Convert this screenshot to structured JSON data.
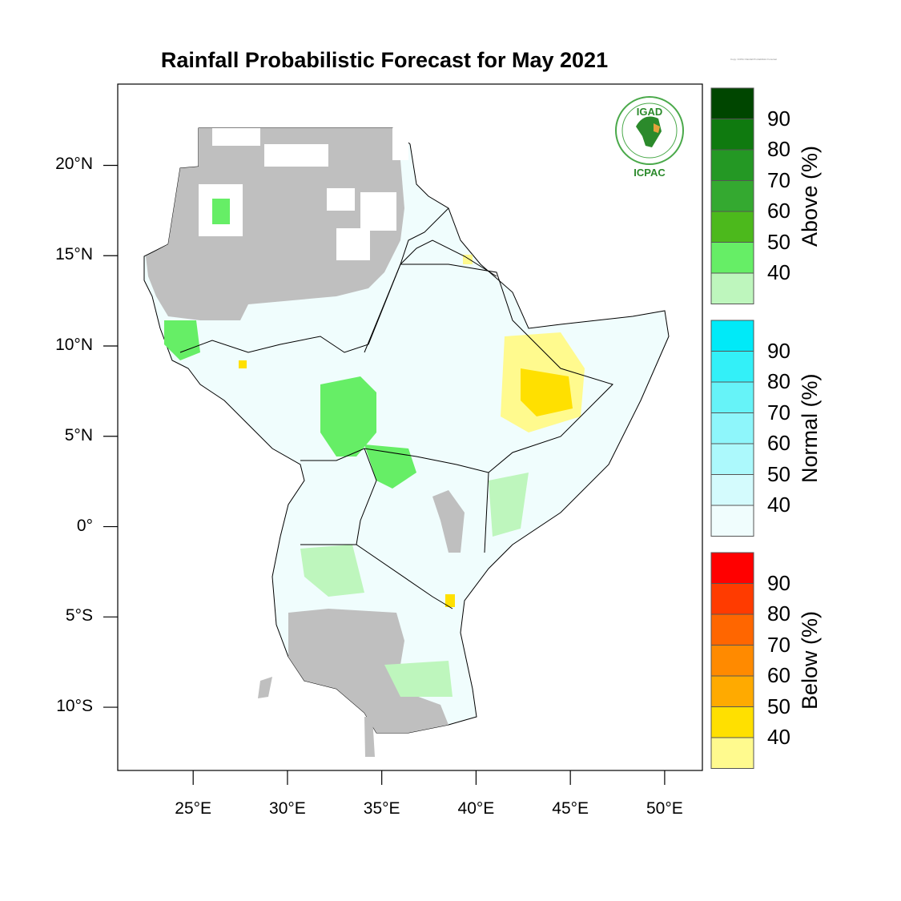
{
  "title": "Rainfall Probabilistic Forecast for May 2021",
  "tiny_note": "Copy: ICPAC Rainfall Probabilistic Forecast",
  "map": {
    "projection": "lat-lon",
    "lon_range": [
      21,
      52
    ],
    "lat_range": [
      -13.5,
      24.5
    ],
    "lat_ticks": [
      {
        "value": 20,
        "label": "20°N"
      },
      {
        "value": 15,
        "label": "15°N"
      },
      {
        "value": 10,
        "label": "10°N"
      },
      {
        "value": 5,
        "label": "5°N"
      },
      {
        "value": 0,
        "label": "0°"
      },
      {
        "value": -5,
        "label": "5°S"
      },
      {
        "value": -10,
        "label": "10°S"
      }
    ],
    "lon_ticks": [
      {
        "value": 25,
        "label": "25°E"
      },
      {
        "value": 30,
        "label": "30°E"
      },
      {
        "value": 35,
        "label": "35°E"
      },
      {
        "value": 40,
        "label": "40°E"
      },
      {
        "value": 45,
        "label": "45°E"
      },
      {
        "value": 50,
        "label": "50°E"
      }
    ],
    "colors": {
      "no_forecast": "#bfbfbf",
      "normal_40": "#f0fdfd",
      "above_40": "#bef6bd",
      "above_50": "#66ee66",
      "below_40": "#fffa8e",
      "below_50": "#ffe000",
      "normal_50": "#c8f8ff",
      "border": "#000000"
    }
  },
  "logo": {
    "org_top": "IGAD",
    "org_bottom": "ICPAC"
  },
  "legends": [
    {
      "name": "above",
      "title": "Above (%)",
      "labels": [
        "90",
        "80",
        "70",
        "60",
        "50",
        "40"
      ],
      "colors": [
        "#004600",
        "#0f7a0f",
        "#249824",
        "#34a930",
        "#4cb91c",
        "#66ee66",
        "#bef6bd"
      ]
    },
    {
      "name": "normal",
      "title": "Normal (%)",
      "labels": [
        "90",
        "80",
        "70",
        "60",
        "50",
        "40"
      ],
      "colors": [
        "#00eaf8",
        "#33f0f8",
        "#66f3f8",
        "#8ef6fb",
        "#acf9fc",
        "#d4fbfd",
        "#f0fdfd"
      ]
    },
    {
      "name": "below",
      "title": "Below (%)",
      "labels": [
        "90",
        "80",
        "70",
        "60",
        "50",
        "40"
      ],
      "colors": [
        "#ff0000",
        "#ff3b00",
        "#ff6600",
        "#ff8a00",
        "#ffaa00",
        "#ffe000",
        "#fffa8e"
      ]
    }
  ]
}
